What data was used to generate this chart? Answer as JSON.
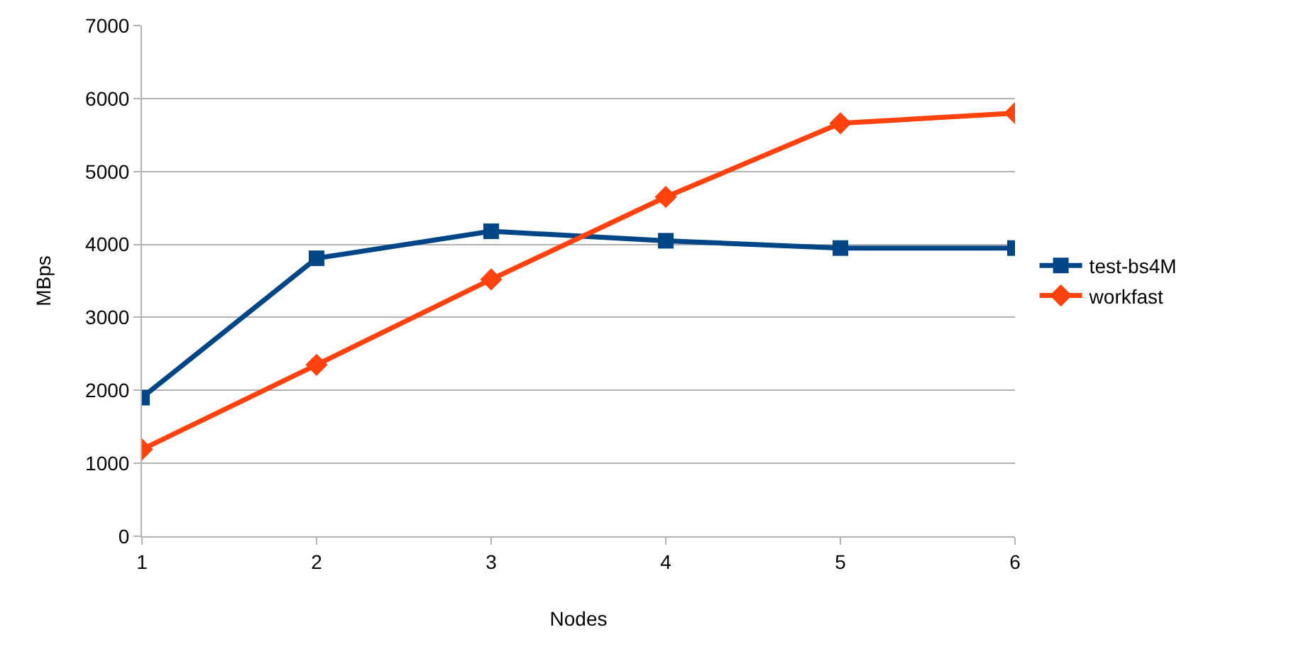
{
  "chart_data": {
    "type": "line",
    "xlabel": "Nodes",
    "ylabel": "MBps",
    "x": [
      1,
      2,
      3,
      4,
      5,
      6
    ],
    "series": [
      {
        "name": "test-bs4M",
        "color": "#004586",
        "marker": "square",
        "values": [
          1900,
          3810,
          4180,
          4050,
          3950,
          3950
        ]
      },
      {
        "name": "workfast",
        "color": "#ff420e",
        "marker": "diamond",
        "values": [
          1190,
          2350,
          3520,
          4650,
          5660,
          5800
        ]
      }
    ],
    "xlim": [
      1,
      6
    ],
    "xticks": [
      1,
      2,
      3,
      4,
      5,
      6
    ],
    "ylim": [
      0,
      7000
    ],
    "yticks": [
      0,
      1000,
      2000,
      3000,
      4000,
      5000,
      6000,
      7000
    ],
    "grid": "y",
    "legend": "right",
    "line_style": "solid"
  }
}
